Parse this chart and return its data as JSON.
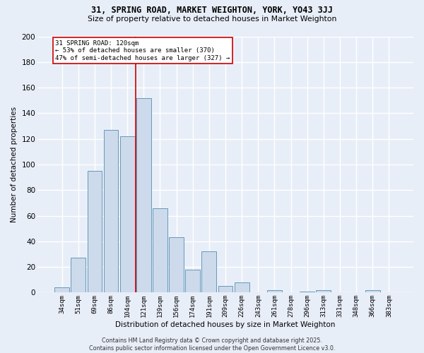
{
  "title1": "31, SPRING ROAD, MARKET WEIGHTON, YORK, YO43 3JJ",
  "title2": "Size of property relative to detached houses in Market Weighton",
  "xlabel": "Distribution of detached houses by size in Market Weighton",
  "ylabel": "Number of detached properties",
  "bar_labels": [
    "34sqm",
    "51sqm",
    "69sqm",
    "86sqm",
    "104sqm",
    "121sqm",
    "139sqm",
    "156sqm",
    "174sqm",
    "191sqm",
    "209sqm",
    "226sqm",
    "243sqm",
    "261sqm",
    "278sqm",
    "296sqm",
    "313sqm",
    "331sqm",
    "348sqm",
    "366sqm",
    "383sqm"
  ],
  "bar_values": [
    4,
    27,
    95,
    127,
    122,
    152,
    66,
    43,
    18,
    32,
    5,
    8,
    0,
    2,
    0,
    1,
    2,
    0,
    0,
    2,
    0
  ],
  "bar_color": "#ccdaeb",
  "bar_edge_color": "#6699bb",
  "vline_x_index": 5,
  "vline_color": "#cc0000",
  "annotation_text": "31 SPRING ROAD: 120sqm\n← 53% of detached houses are smaller (370)\n47% of semi-detached houses are larger (327) →",
  "annotation_box_color": "#ffffff",
  "annotation_box_edge": "#cc0000",
  "ylim": [
    0,
    200
  ],
  "yticks": [
    0,
    20,
    40,
    60,
    80,
    100,
    120,
    140,
    160,
    180,
    200
  ],
  "background_color": "#e8eef8",
  "grid_color": "#ffffff",
  "footer": "Contains HM Land Registry data © Crown copyright and database right 2025.\nContains public sector information licensed under the Open Government Licence v3.0."
}
